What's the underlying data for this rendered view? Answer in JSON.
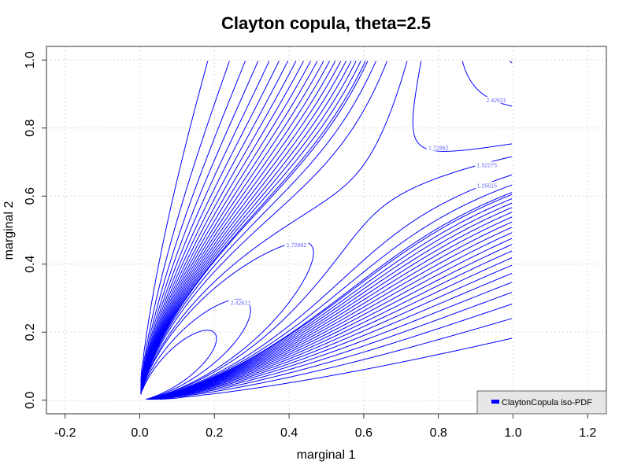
{
  "chart_data": {
    "type": "contour",
    "title": "Clayton copula, theta=2.5",
    "xlabel": "marginal 1",
    "ylabel": "marginal 2",
    "xlim": [
      -0.25,
      1.25
    ],
    "ylim": [
      -0.04,
      1.04
    ],
    "x_ticks": [
      "-0.2",
      "0.0",
      "0.2",
      "0.4",
      "0.6",
      "0.8",
      "1.0",
      "1.2"
    ],
    "x_tick_values": [
      -0.2,
      0.0,
      0.2,
      0.4,
      0.6,
      0.8,
      1.0,
      1.2
    ],
    "y_ticks": [
      "0.0",
      "0.2",
      "0.4",
      "0.6",
      "0.8",
      "1.0"
    ],
    "y_tick_values": [
      0.0,
      0.2,
      0.4,
      0.6,
      0.8,
      1.0
    ],
    "grid": true,
    "theta": 2.5,
    "levels": [
      0.05,
      0.1,
      0.15,
      0.2,
      0.25,
      0.3,
      0.35,
      0.4,
      0.45,
      0.5,
      0.55,
      0.6,
      0.65,
      0.7,
      0.75,
      0.8,
      0.85,
      0.9,
      0.95,
      1.0,
      1.0256,
      1.12,
      1.25515,
      1.52275,
      1.72862,
      2.42621,
      3.4
    ],
    "level_labels": [
      {
        "text": "2.42621",
        "x": 0.27,
        "y": 0.285
      },
      {
        "text": "1.72862",
        "x": 0.42,
        "y": 0.455
      },
      {
        "text": "1.72862",
        "x": 0.8,
        "y": 0.74
      },
      {
        "text": "1.52275",
        "x": 0.93,
        "y": 0.69
      },
      {
        "text": "1.25515",
        "x": 0.93,
        "y": 0.63
      },
      {
        "text": "2.42621",
        "x": 0.955,
        "y": 0.88
      }
    ],
    "legend": {
      "entries": [
        {
          "name": "ClaytonCopula iso-PDF",
          "color": "#0000ff"
        }
      ],
      "position": "bottom-right"
    },
    "line_color": "#0000ff"
  }
}
